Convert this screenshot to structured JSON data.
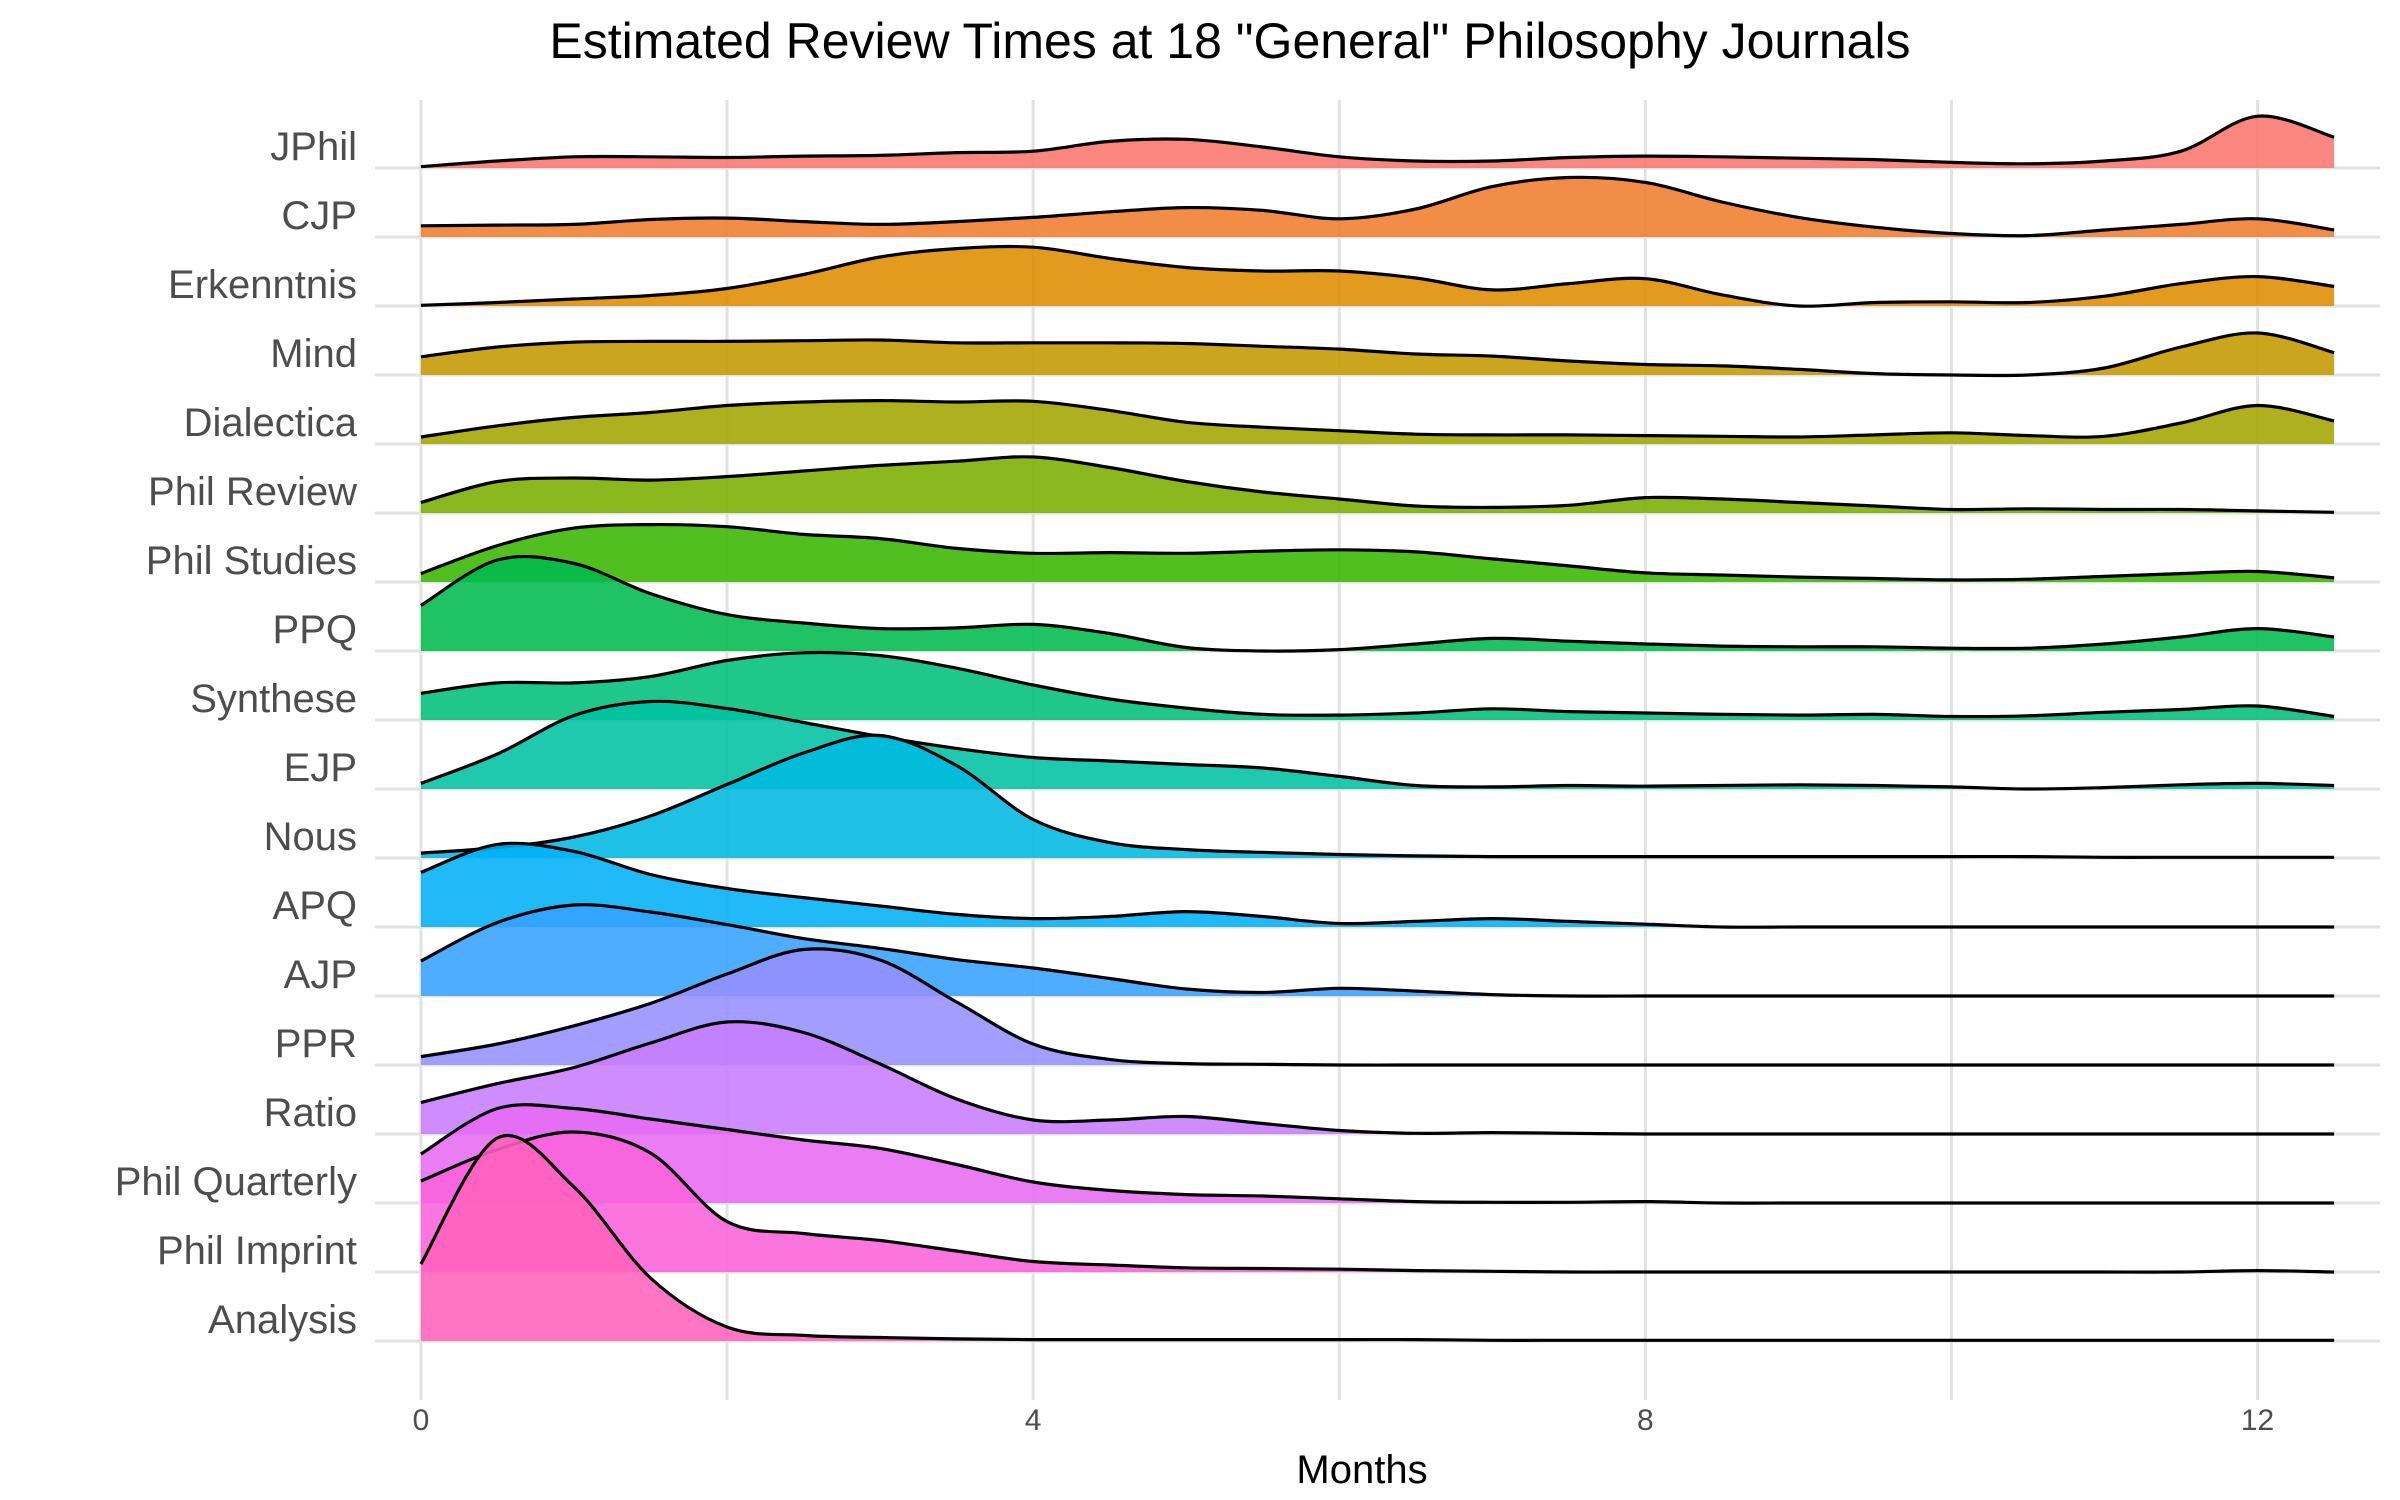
{
  "chart_data": {
    "type": "ridgeline",
    "title": "Estimated Review Times at 18 \"General\" Philosophy Journals",
    "xlabel": "Months",
    "ylabel": "",
    "xlim": [
      -0.3,
      12.8
    ],
    "xticks": [
      0,
      4,
      8,
      12
    ],
    "x": [
      0,
      0.5,
      1,
      1.5,
      2,
      2.5,
      3,
      3.5,
      4,
      4.5,
      5,
      5.5,
      6,
      6.5,
      7,
      7.5,
      8,
      8.5,
      9,
      9.5,
      10,
      10.5,
      11,
      11.5,
      12,
      12.5
    ],
    "grid": true,
    "legend": "none",
    "series": [
      {
        "name": "JPhil",
        "color": "#F8766D",
        "values": [
          0.02,
          0.1,
          0.16,
          0.16,
          0.15,
          0.17,
          0.18,
          0.22,
          0.24,
          0.38,
          0.41,
          0.3,
          0.16,
          0.1,
          0.1,
          0.15,
          0.17,
          0.16,
          0.14,
          0.12,
          0.08,
          0.06,
          0.1,
          0.24,
          0.74,
          0.44
        ]
      },
      {
        "name": "CJP",
        "color": "#F07D2E",
        "values": [
          0.16,
          0.17,
          0.18,
          0.25,
          0.27,
          0.22,
          0.18,
          0.22,
          0.28,
          0.36,
          0.42,
          0.38,
          0.26,
          0.4,
          0.72,
          0.85,
          0.78,
          0.5,
          0.28,
          0.14,
          0.05,
          0.02,
          0.1,
          0.18,
          0.26,
          0.1
        ]
      },
      {
        "name": "Erkenntnis",
        "color": "#DE8C00",
        "values": [
          0.01,
          0.05,
          0.1,
          0.15,
          0.25,
          0.45,
          0.7,
          0.82,
          0.84,
          0.68,
          0.55,
          0.5,
          0.5,
          0.4,
          0.23,
          0.32,
          0.39,
          0.16,
          0.0,
          0.05,
          0.06,
          0.05,
          0.14,
          0.32,
          0.42,
          0.28
        ]
      },
      {
        "name": "Mind",
        "color": "#C59900",
        "values": [
          0.26,
          0.4,
          0.47,
          0.48,
          0.48,
          0.49,
          0.5,
          0.46,
          0.46,
          0.46,
          0.45,
          0.41,
          0.37,
          0.3,
          0.27,
          0.2,
          0.15,
          0.13,
          0.08,
          0.02,
          0.0,
          0.0,
          0.1,
          0.4,
          0.6,
          0.32
        ]
      },
      {
        "name": "Dialectica",
        "color": "#A3A500",
        "values": [
          0.1,
          0.26,
          0.38,
          0.45,
          0.55,
          0.6,
          0.62,
          0.6,
          0.61,
          0.48,
          0.31,
          0.24,
          0.19,
          0.14,
          0.13,
          0.13,
          0.12,
          0.11,
          0.1,
          0.13,
          0.16,
          0.12,
          0.11,
          0.3,
          0.55,
          0.33
        ]
      },
      {
        "name": "Phil Review",
        "color": "#7CAE00",
        "values": [
          0.15,
          0.45,
          0.5,
          0.47,
          0.52,
          0.6,
          0.68,
          0.74,
          0.8,
          0.65,
          0.45,
          0.3,
          0.2,
          0.1,
          0.08,
          0.11,
          0.22,
          0.2,
          0.15,
          0.1,
          0.05,
          0.06,
          0.05,
          0.05,
          0.03,
          0.01
        ]
      },
      {
        "name": "Phil Studies",
        "color": "#39B600",
        "values": [
          0.12,
          0.52,
          0.77,
          0.82,
          0.79,
          0.68,
          0.62,
          0.48,
          0.41,
          0.42,
          0.41,
          0.44,
          0.46,
          0.43,
          0.33,
          0.23,
          0.13,
          0.1,
          0.07,
          0.05,
          0.03,
          0.04,
          0.08,
          0.12,
          0.15,
          0.06
        ]
      },
      {
        "name": "PPQ",
        "color": "#00BB4E",
        "values": [
          0.65,
          1.3,
          1.25,
          0.82,
          0.52,
          0.4,
          0.32,
          0.33,
          0.38,
          0.25,
          0.05,
          0.0,
          0.02,
          0.1,
          0.18,
          0.14,
          0.1,
          0.07,
          0.06,
          0.06,
          0.04,
          0.04,
          0.1,
          0.2,
          0.32,
          0.2
        ]
      },
      {
        "name": "Synthese",
        "color": "#00BF7D",
        "values": [
          0.38,
          0.53,
          0.53,
          0.62,
          0.85,
          0.96,
          0.92,
          0.74,
          0.5,
          0.3,
          0.17,
          0.08,
          0.07,
          0.1,
          0.16,
          0.12,
          0.1,
          0.08,
          0.07,
          0.08,
          0.05,
          0.06,
          0.11,
          0.15,
          0.2,
          0.05
        ]
      },
      {
        "name": "EJP",
        "color": "#00C1A3",
        "values": [
          0.08,
          0.5,
          1.05,
          1.25,
          1.15,
          0.95,
          0.75,
          0.58,
          0.45,
          0.4,
          0.35,
          0.3,
          0.18,
          0.05,
          0.03,
          0.05,
          0.04,
          0.05,
          0.06,
          0.05,
          0.03,
          0.0,
          0.02,
          0.06,
          0.08,
          0.05
        ]
      },
      {
        "name": "Nous",
        "color": "#00BAE0",
        "values": [
          0.07,
          0.15,
          0.3,
          0.6,
          1.05,
          1.5,
          1.75,
          1.32,
          0.55,
          0.22,
          0.12,
          0.08,
          0.05,
          0.03,
          0.02,
          0.02,
          0.02,
          0.02,
          0.02,
          0.02,
          0.02,
          0.02,
          0.01,
          0.01,
          0.01,
          0.01
        ]
      },
      {
        "name": "APQ",
        "color": "#00B0F6",
        "values": [
          0.78,
          1.18,
          1.08,
          0.75,
          0.55,
          0.42,
          0.3,
          0.18,
          0.12,
          0.15,
          0.22,
          0.15,
          0.05,
          0.08,
          0.12,
          0.08,
          0.04,
          0.0,
          0.0,
          0.0,
          0.0,
          0.0,
          0.0,
          0.0,
          0.0,
          0.0
        ]
      },
      {
        "name": "AJP",
        "color": "#35A2FF",
        "values": [
          0.5,
          1.05,
          1.3,
          1.2,
          1.02,
          0.82,
          0.68,
          0.52,
          0.4,
          0.25,
          0.1,
          0.05,
          0.11,
          0.07,
          0.02,
          0.0,
          0.0,
          0.0,
          0.0,
          0.0,
          0.0,
          0.0,
          0.0,
          0.0,
          0.0,
          0.0
        ]
      },
      {
        "name": "PPR",
        "color": "#9590FF",
        "values": [
          0.12,
          0.3,
          0.56,
          0.88,
          1.3,
          1.65,
          1.5,
          0.9,
          0.3,
          0.08,
          0.02,
          0.01,
          0.0,
          0.0,
          0.0,
          0.0,
          0.0,
          0.0,
          0.0,
          0.0,
          0.0,
          0.0,
          0.0,
          0.0,
          0.0,
          0.0
        ]
      },
      {
        "name": "Ratio",
        "color": "#C77CFF",
        "values": [
          0.45,
          0.72,
          0.95,
          1.3,
          1.6,
          1.45,
          1.0,
          0.5,
          0.2,
          0.2,
          0.25,
          0.15,
          0.05,
          0.01,
          0.02,
          0.01,
          0.0,
          0.0,
          0.0,
          0.0,
          0.0,
          0.0,
          0.0,
          0.0,
          0.0,
          0.0
        ]
      },
      {
        "name": "Phil Quarterly",
        "color": "#E76BF3",
        "values": [
          0.7,
          1.35,
          1.35,
          1.2,
          1.05,
          0.9,
          0.78,
          0.55,
          0.3,
          0.18,
          0.12,
          0.1,
          0.06,
          0.02,
          0.01,
          0.01,
          0.02,
          0.0,
          0.0,
          0.0,
          0.0,
          0.0,
          0.0,
          0.0,
          0.0,
          0.0
        ]
      },
      {
        "name": "Phil Imprint",
        "color": "#FA62DB",
        "values": [
          1.3,
          1.75,
          2.0,
          1.7,
          0.72,
          0.55,
          0.45,
          0.3,
          0.15,
          0.1,
          0.06,
          0.05,
          0.04,
          0.02,
          0.01,
          0.0,
          0.0,
          0.0,
          0.0,
          0.0,
          0.0,
          0.0,
          0.0,
          0.0,
          0.02,
          0.0
        ]
      },
      {
        "name": "Analysis",
        "color": "#FF62BC",
        "values": [
          1.1,
          2.9,
          2.2,
          0.9,
          0.2,
          0.08,
          0.05,
          0.03,
          0.02,
          0.02,
          0.02,
          0.02,
          0.02,
          0.02,
          0.01,
          0.01,
          0.01,
          0.01,
          0.01,
          0.01,
          0.01,
          0.01,
          0.01,
          0.01,
          0.01,
          0.01
        ]
      }
    ]
  }
}
